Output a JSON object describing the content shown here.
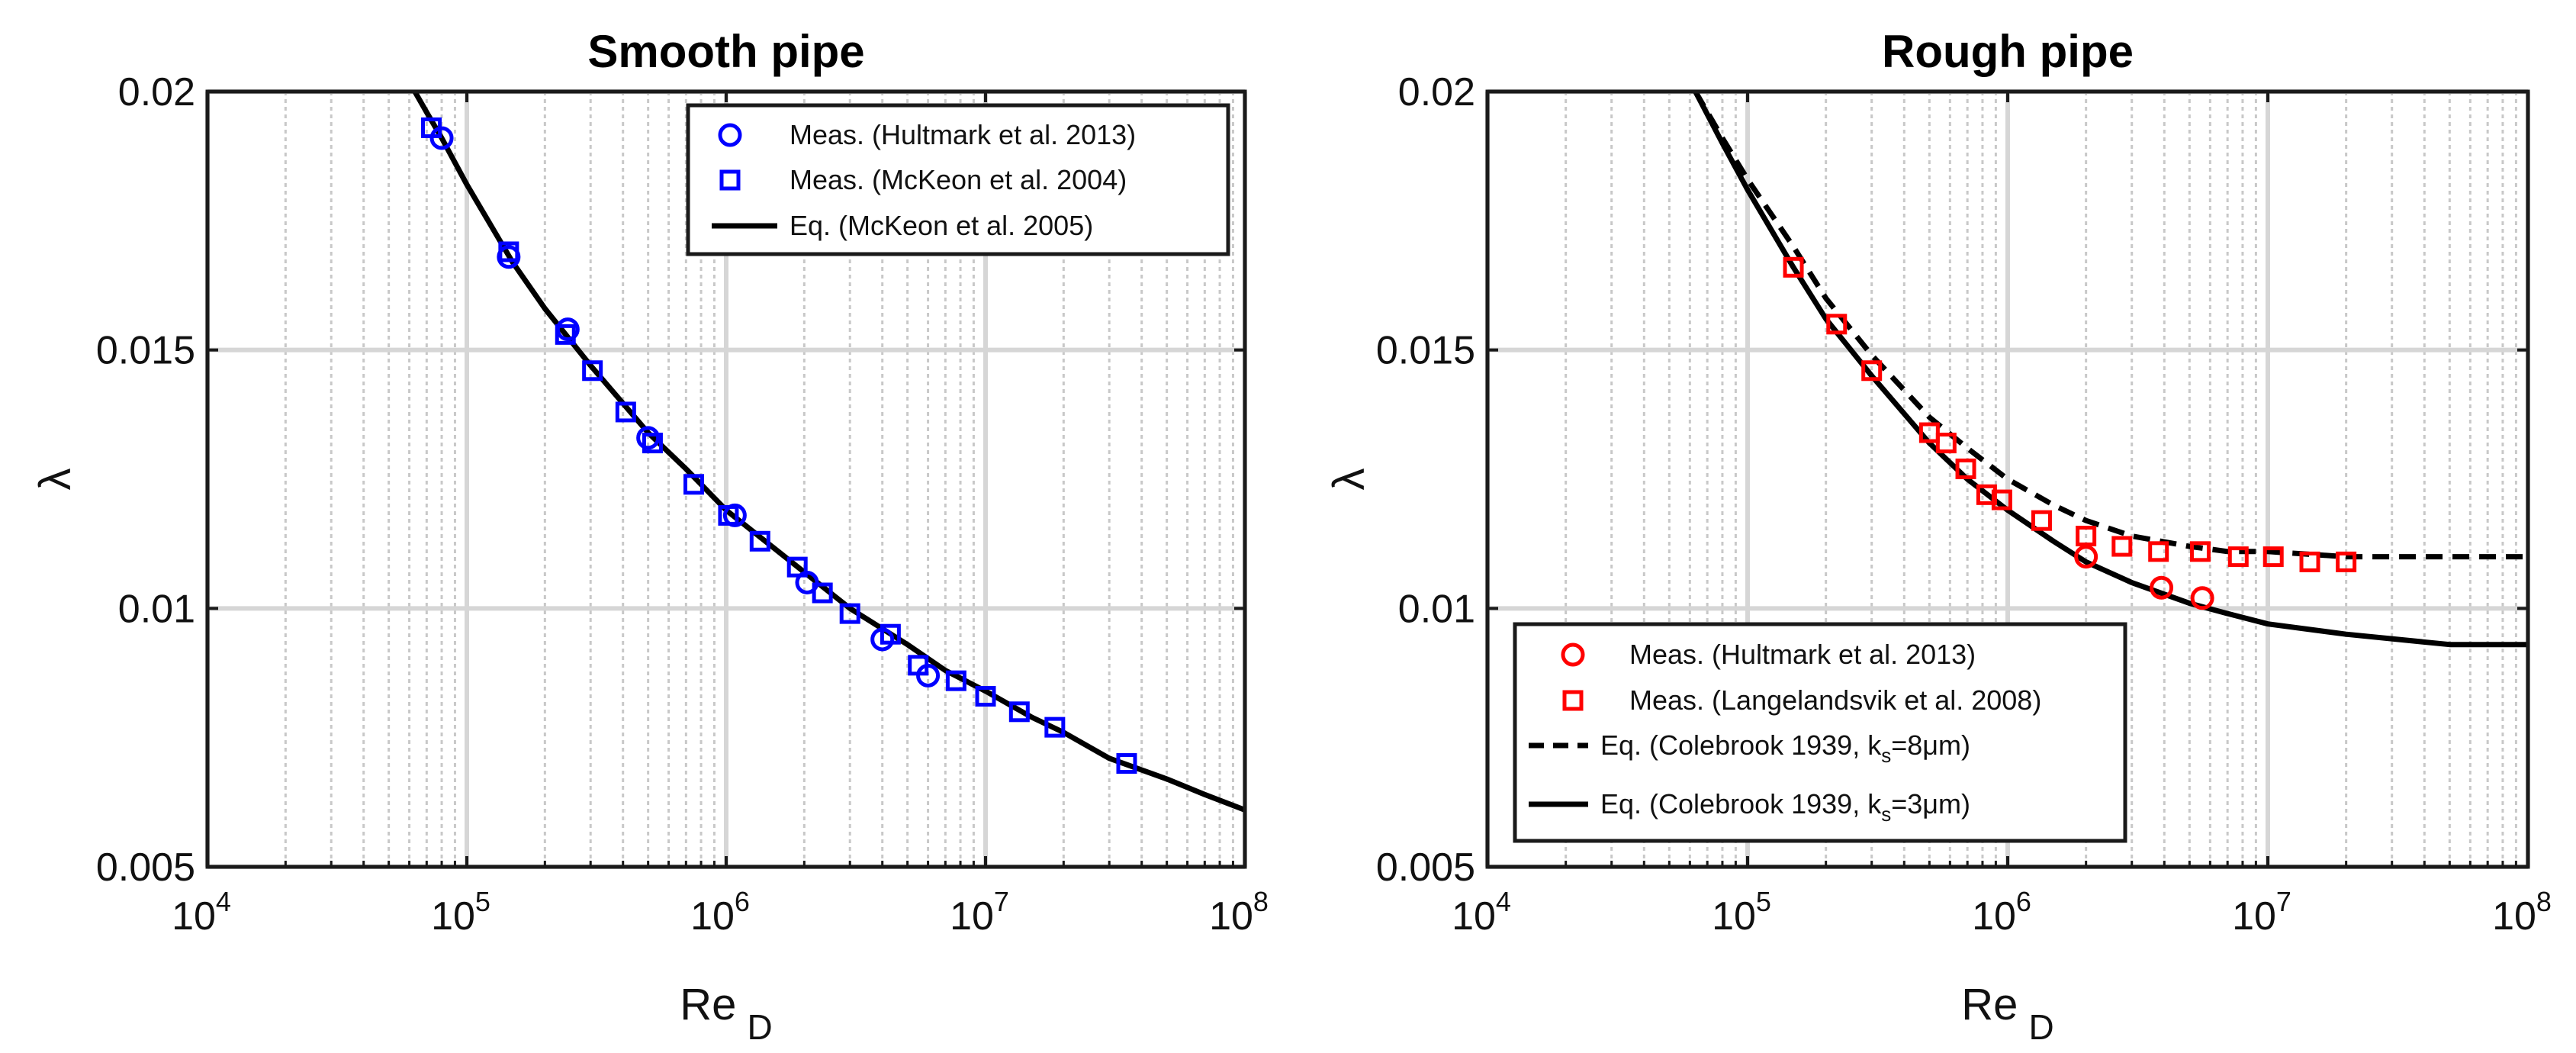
{
  "chart_data": [
    {
      "type": "scatter",
      "title": "Smooth pipe",
      "xlabel": "Re",
      "xlabel_sub": "D",
      "ylabel": "λ",
      "xscale": "log",
      "xlim": [
        10000,
        100000000
      ],
      "ylim": [
        0.005,
        0.02
      ],
      "xticks": [
        {
          "base": "10",
          "exp": "4",
          "value": 10000
        },
        {
          "base": "10",
          "exp": "5",
          "value": 100000
        },
        {
          "base": "10",
          "exp": "6",
          "value": 1000000
        },
        {
          "base": "10",
          "exp": "7",
          "value": 10000000
        },
        {
          "base": "10",
          "exp": "8",
          "value": 100000000
        }
      ],
      "yticks": [
        {
          "label": "0.005",
          "value": 0.005
        },
        {
          "label": "0.01",
          "value": 0.01
        },
        {
          "label": "0.015",
          "value": 0.015
        },
        {
          "label": "0.02",
          "value": 0.02
        }
      ],
      "grid": true,
      "legend_position": "top-right",
      "series": [
        {
          "name": "Meas. (Hultmark et al. 2013)",
          "marker": "circle",
          "color": "#0000ff",
          "x": [
            80000,
            145000,
            245000,
            500000,
            1080000,
            2050000,
            4000000,
            6000000
          ],
          "y": [
            0.0191,
            0.0168,
            0.0154,
            0.0133,
            0.0118,
            0.0105,
            0.0094,
            0.0087
          ]
        },
        {
          "name": "Meas. (McKeon et al. 2004)",
          "marker": "square",
          "color": "#0000ff",
          "x": [
            73000,
            145000,
            240000,
            305000,
            410000,
            520000,
            750000,
            1020000,
            1350000,
            1880000,
            2350000,
            3000000,
            4300000,
            5500000,
            7700000,
            10000000,
            13500000,
            18500000,
            35000000
          ],
          "y": [
            0.0193,
            0.0169,
            0.0153,
            0.0146,
            0.0138,
            0.0132,
            0.0124,
            0.0118,
            0.0113,
            0.0108,
            0.0103,
            0.0099,
            0.0095,
            0.0089,
            0.0086,
            0.0083,
            0.008,
            0.0077,
            0.007
          ]
        },
        {
          "name": "Eq. (McKeon et al. 2005)",
          "line": "solid",
          "color": "#000000",
          "x": [
            63000,
            70000,
            80000,
            100000,
            150000,
            200000,
            300000,
            500000,
            700000,
            1000000,
            1500000,
            2000000,
            3000000,
            5000000,
            7000000,
            10000000,
            15000000,
            20000000,
            30000000,
            50000000,
            70000000,
            100000000
          ],
          "y": [
            0.02,
            0.0196,
            0.0191,
            0.0182,
            0.0167,
            0.0158,
            0.0147,
            0.0134,
            0.0127,
            0.0119,
            0.0112,
            0.0107,
            0.01,
            0.0093,
            0.0088,
            0.0084,
            0.0079,
            0.0076,
            0.0071,
            0.0067,
            0.0064,
            0.0061
          ]
        }
      ]
    },
    {
      "type": "scatter",
      "title": "Rough pipe",
      "xlabel": "Re",
      "xlabel_sub": "D",
      "ylabel": "λ",
      "xscale": "log",
      "xlim": [
        10000,
        100000000
      ],
      "ylim": [
        0.005,
        0.02
      ],
      "xticks": [
        {
          "base": "10",
          "exp": "4",
          "value": 10000
        },
        {
          "base": "10",
          "exp": "5",
          "value": 100000
        },
        {
          "base": "10",
          "exp": "6",
          "value": 1000000
        },
        {
          "base": "10",
          "exp": "7",
          "value": 10000000
        },
        {
          "base": "10",
          "exp": "8",
          "value": 100000000
        }
      ],
      "yticks": [
        {
          "label": "0.005",
          "value": 0.005
        },
        {
          "label": "0.01",
          "value": 0.01
        },
        {
          "label": "0.015",
          "value": 0.015
        },
        {
          "label": "0.02",
          "value": 0.02
        }
      ],
      "grid": true,
      "legend_position": "bottom-left",
      "series": [
        {
          "name": "Meas. (Hultmark et al. 2013)",
          "marker": "circle",
          "color": "#ff0000",
          "x": [
            2000000,
            3900000,
            5600000
          ],
          "y": [
            0.011,
            0.0104,
            0.0102
          ]
        },
        {
          "name": "Meas. (Langelandsvik et al. 2008)",
          "marker": "square",
          "color": "#ff0000",
          "x": [
            150000,
            220000,
            300000,
            500000,
            580000,
            690000,
            830000,
            950000,
            1350000,
            2000000,
            2750000,
            3800000,
            5500000,
            7700000,
            10500000,
            14500000,
            20000000
          ],
          "y": [
            0.0166,
            0.0155,
            0.0146,
            0.0134,
            0.0132,
            0.0127,
            0.0122,
            0.0121,
            0.0117,
            0.0114,
            0.0112,
            0.0111,
            0.0111,
            0.011,
            0.011,
            0.0109,
            0.0109
          ]
        },
        {
          "name": "Eq. (Colebrook 1939, k",
          "name_sub": "s",
          "name_tail": "=8μm)",
          "line": "dashed",
          "color": "#000000",
          "x": [
            63000,
            80000,
            100000,
            150000,
            200000,
            300000,
            500000,
            700000,
            1000000,
            1500000,
            2000000,
            3000000,
            5000000,
            7000000,
            10000000,
            20000000,
            50000000,
            100000000
          ],
          "y": [
            0.02,
            0.0191,
            0.0183,
            0.017,
            0.016,
            0.0149,
            0.0137,
            0.0131,
            0.0125,
            0.012,
            0.0117,
            0.0114,
            0.0112,
            0.0111,
            0.0111,
            0.011,
            0.011,
            0.011
          ]
        },
        {
          "name": "Eq. (Colebrook 1939, k",
          "name_sub": "s",
          "name_tail": "=3μm)",
          "line": "solid",
          "color": "#000000",
          "x": [
            63000,
            80000,
            100000,
            150000,
            200000,
            300000,
            500000,
            700000,
            1000000,
            1500000,
            2000000,
            3000000,
            5000000,
            7000000,
            10000000,
            20000000,
            50000000,
            100000000
          ],
          "y": [
            0.02,
            0.019,
            0.0181,
            0.0166,
            0.0156,
            0.0145,
            0.0132,
            0.0125,
            0.0119,
            0.0113,
            0.0109,
            0.0105,
            0.0101,
            0.0099,
            0.0097,
            0.0095,
            0.0093,
            0.0093
          ]
        }
      ]
    }
  ]
}
